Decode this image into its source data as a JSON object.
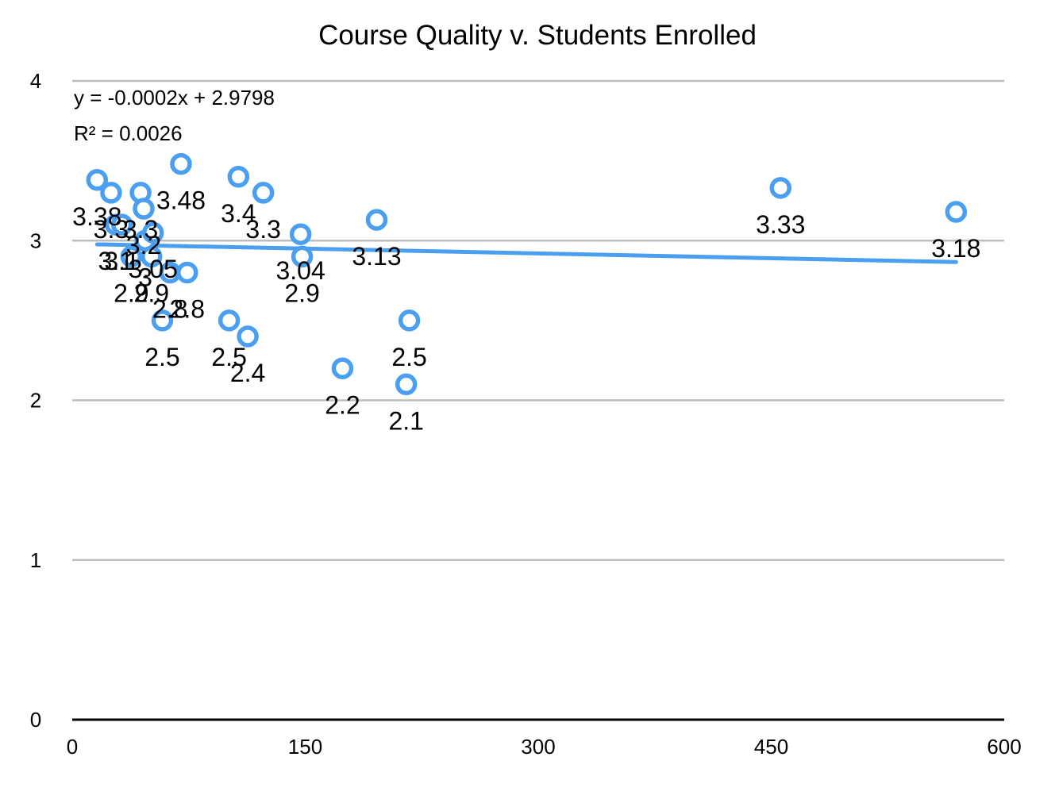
{
  "chart_data": {
    "type": "scatter",
    "title": "Course Quality v. Students Enrolled",
    "xlabel": "",
    "ylabel": "",
    "xlim": [
      0,
      600
    ],
    "ylim": [
      0,
      4
    ],
    "x_ticks": [
      "0",
      "150",
      "300",
      "450",
      "600"
    ],
    "y_ticks": [
      "0",
      "1",
      "2",
      "3",
      "4"
    ],
    "grid": "horizontal",
    "marker_color": "#4a9ff0",
    "trendline": {
      "type": "linear",
      "slope": -0.0002,
      "intercept": 2.9798,
      "equation": "y = -0.0002x + 2.9798",
      "r_squared": "R² = 0.0026",
      "color": "#4a9ff0"
    },
    "points": [
      {
        "x": 16,
        "y": 3.38,
        "label": "3.38"
      },
      {
        "x": 25,
        "y": 3.3,
        "label": "3.3"
      },
      {
        "x": 28,
        "y": 3.1,
        "label": "3.1"
      },
      {
        "x": 32,
        "y": 3.1,
        "label": "3.1"
      },
      {
        "x": 38,
        "y": 2.9,
        "label": "2.9"
      },
      {
        "x": 44,
        "y": 3.3,
        "label": "3.3"
      },
      {
        "x": 46,
        "y": 3.2,
        "label": "3.2"
      },
      {
        "x": 47,
        "y": 3.0,
        "label": "3"
      },
      {
        "x": 51,
        "y": 2.9,
        "label": "2.9"
      },
      {
        "x": 52,
        "y": 3.05,
        "label": "3.05"
      },
      {
        "x": 58,
        "y": 2.5,
        "label": "2.5"
      },
      {
        "x": 63,
        "y": 2.8,
        "label": "2.8"
      },
      {
        "x": 70,
        "y": 3.48,
        "label": "3.48"
      },
      {
        "x": 74,
        "y": 2.8,
        "label": "2.8"
      },
      {
        "x": 101,
        "y": 2.5,
        "label": "2.5"
      },
      {
        "x": 107,
        "y": 3.4,
        "label": "3.4"
      },
      {
        "x": 113,
        "y": 2.4,
        "label": "2.4"
      },
      {
        "x": 123,
        "y": 3.3,
        "label": "3.3"
      },
      {
        "x": 147,
        "y": 3.04,
        "label": "3.04"
      },
      {
        "x": 148,
        "y": 2.9,
        "label": "2.9"
      },
      {
        "x": 174,
        "y": 2.2,
        "label": "2.2"
      },
      {
        "x": 196,
        "y": 3.13,
        "label": "3.13"
      },
      {
        "x": 215,
        "y": 2.1,
        "label": "2.1"
      },
      {
        "x": 217,
        "y": 2.5,
        "label": "2.5"
      },
      {
        "x": 456,
        "y": 3.33,
        "label": "3.33"
      },
      {
        "x": 569,
        "y": 3.18,
        "label": "3.18"
      }
    ]
  }
}
